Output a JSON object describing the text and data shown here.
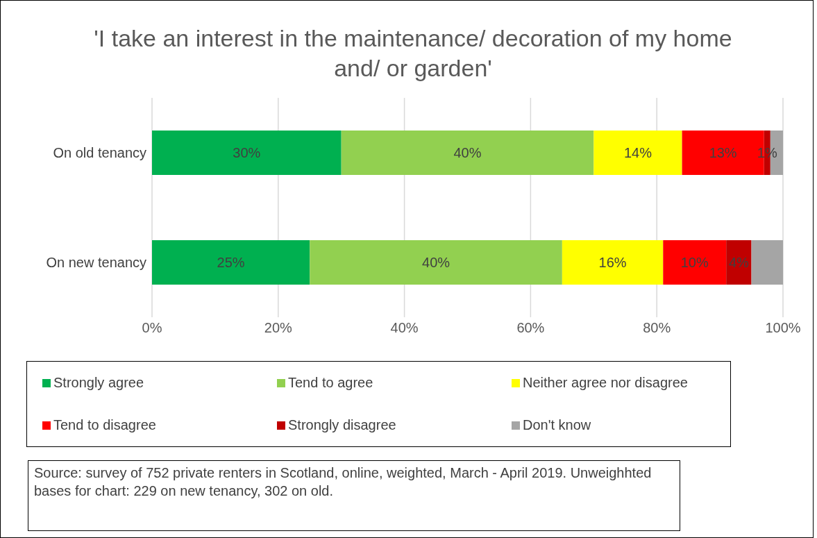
{
  "chart_data": {
    "type": "bar",
    "orientation": "horizontal",
    "stacked": true,
    "title": "'I take an interest in the maintenance/ decoration of my home and/ or garden'",
    "categories": [
      "On old tenancy",
      "On new tenancy"
    ],
    "series": [
      {
        "name": "Strongly agree",
        "color": "#00b050",
        "values": [
          30,
          25
        ],
        "value_labels": [
          "30%",
          "25%"
        ]
      },
      {
        "name": "Tend to agree",
        "color": "#92d050",
        "values": [
          40,
          40
        ],
        "value_labels": [
          "40%",
          "40%"
        ]
      },
      {
        "name": "Neither agree nor disagree",
        "color": "#ffff00",
        "values": [
          14,
          16
        ],
        "value_labels": [
          "14%",
          "16%"
        ]
      },
      {
        "name": "Tend to disagree",
        "color": "#ff0000",
        "values": [
          13,
          10
        ],
        "value_labels": [
          "13%",
          "10%"
        ]
      },
      {
        "name": "Strongly disagree",
        "color": "#c00000",
        "values": [
          1,
          4
        ],
        "value_labels": [
          "1%",
          "4%"
        ]
      },
      {
        "name": "Don't know",
        "color": "#a5a5a5",
        "values": [
          2,
          5
        ],
        "value_labels": [
          null,
          null
        ]
      }
    ],
    "xlim": [
      0,
      100
    ],
    "xticks": [
      {
        "value": 0,
        "label": "0%"
      },
      {
        "value": 20,
        "label": "20%"
      },
      {
        "value": 40,
        "label": "40%"
      },
      {
        "value": 60,
        "label": "60%"
      },
      {
        "value": 80,
        "label": "80%"
      },
      {
        "value": 100,
        "label": "100%"
      }
    ],
    "grid": "x",
    "legend": "bottom",
    "annotations": [
      "Source: survey of 752 private renters in Scotland, online, weighted, March - April 2019. Unweighhted bases for chart: 229 on new tenancy, 302 on old."
    ]
  }
}
